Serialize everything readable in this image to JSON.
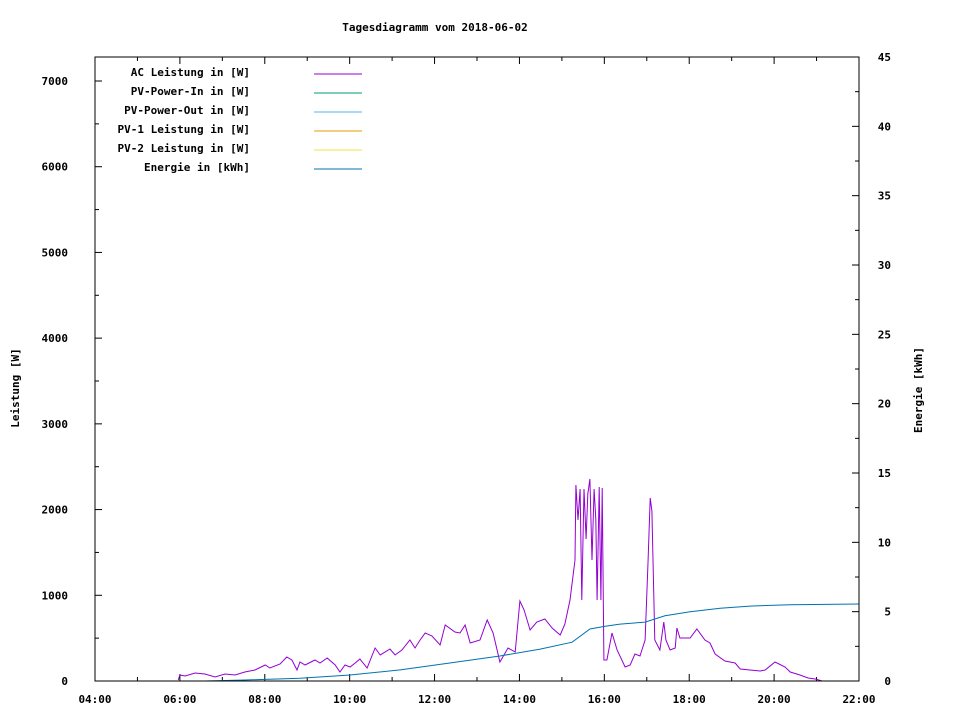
{
  "chart_data": {
    "type": "line",
    "title": "Tagesdiagramm vom 2018-06-02",
    "ylabel": "Leistung [W]",
    "y2label": "Energie [kWh]",
    "xlabel": "",
    "xlim": [
      4,
      22
    ],
    "ylim": [
      0,
      7280
    ],
    "y2lim": [
      0,
      45
    ],
    "x_ticks": [
      "04:00",
      "06:00",
      "08:00",
      "10:00",
      "12:00",
      "14:00",
      "16:00",
      "18:00",
      "20:00",
      "22:00"
    ],
    "y_ticks": [
      0,
      1000,
      2000,
      3000,
      4000,
      5000,
      6000,
      7000
    ],
    "y2_ticks": [
      0,
      5,
      10,
      15,
      20,
      25,
      30,
      35,
      40,
      45
    ],
    "grid": false,
    "legend_position": "top-left",
    "series": [
      {
        "name": "AC Leistung in [W]",
        "color": "#9400d3",
        "axis": "y",
        "x": [
          5.96,
          6.0,
          6.12,
          6.36,
          6.59,
          6.83,
          7.06,
          7.3,
          7.53,
          7.77,
          8.01,
          8.12,
          8.36,
          8.52,
          8.64,
          8.76,
          8.83,
          8.95,
          9.18,
          9.3,
          9.47,
          9.66,
          9.77,
          9.89,
          10.01,
          10.13,
          10.24,
          10.41,
          10.6,
          10.72,
          10.95,
          11.07,
          11.23,
          11.42,
          11.54,
          11.66,
          11.78,
          11.94,
          12.13,
          12.25,
          12.48,
          12.6,
          12.72,
          12.84,
          13.07,
          13.24,
          13.38,
          13.54,
          13.73,
          13.9,
          14.01,
          14.11,
          14.25,
          14.41,
          14.6,
          14.77,
          14.96,
          15.07,
          15.19,
          15.31,
          15.33,
          15.38,
          15.43,
          15.47,
          15.52,
          15.57,
          15.61,
          15.66,
          15.71,
          15.76,
          15.8,
          15.83,
          15.88,
          15.92,
          15.95,
          15.99,
          16.06,
          16.18,
          16.3,
          16.49,
          16.61,
          16.72,
          16.84,
          16.96,
          17.03,
          17.08,
          17.12,
          17.19,
          17.31,
          17.4,
          17.45,
          17.55,
          17.67,
          17.71,
          17.78,
          18.02,
          18.18,
          18.37,
          18.49,
          18.61,
          18.84,
          19.08,
          19.2,
          19.43,
          19.67,
          19.79,
          20.02,
          20.26,
          20.38,
          20.61,
          20.8,
          20.97,
          21.13
        ],
        "y": [
          12,
          70,
          58,
          93,
          82,
          47,
          82,
          70,
          105,
          128,
          187,
          152,
          198,
          280,
          245,
          128,
          222,
          187,
          245,
          210,
          268,
          187,
          105,
          187,
          163,
          210,
          257,
          152,
          385,
          303,
          373,
          303,
          362,
          478,
          385,
          478,
          560,
          525,
          420,
          653,
          572,
          560,
          653,
          443,
          478,
          712,
          560,
          222,
          385,
          338,
          933,
          828,
          595,
          688,
          723,
          618,
          537,
          665,
          945,
          1412,
          2287,
          1878,
          2240,
          945,
          2240,
          1657,
          2182,
          2357,
          1412,
          2240,
          1890,
          945,
          2263,
          945,
          2252,
          245,
          245,
          560,
          362,
          163,
          187,
          315,
          292,
          478,
          1412,
          2135,
          1983,
          478,
          362,
          688,
          478,
          362,
          385,
          618,
          502,
          502,
          607,
          478,
          443,
          315,
          233,
          210,
          140,
          128,
          117,
          128,
          222,
          163,
          105,
          70,
          35,
          23,
          0
        ]
      },
      {
        "name": "PV-Power-In in [W]",
        "color": "#009e73",
        "axis": "y",
        "x": [],
        "y": []
      },
      {
        "name": "PV-Power-Out in [W]",
        "color": "#56b4e9",
        "axis": "y",
        "x": [],
        "y": []
      },
      {
        "name": "PV-1 Leistung in [W]",
        "color": "#e69f00",
        "axis": "y",
        "x": [],
        "y": []
      },
      {
        "name": "PV-2 Leistung in [W]",
        "color": "#f0e442",
        "axis": "y",
        "x": [],
        "y": []
      },
      {
        "name": "Energie in [kWh]",
        "color": "#0072b2",
        "axis": "y2",
        "x": [
          6.59,
          7.53,
          8.83,
          10.01,
          11.19,
          12.36,
          13.54,
          14.49,
          15.24,
          15.66,
          16.02,
          16.37,
          16.96,
          17.43,
          18.02,
          18.73,
          19.43,
          20.38,
          22.0
        ],
        "y": [
          0,
          0.07,
          0.2,
          0.43,
          0.8,
          1.3,
          1.8,
          2.3,
          2.8,
          3.75,
          3.95,
          4.1,
          4.25,
          4.7,
          5.0,
          5.25,
          5.4,
          5.5,
          5.55
        ]
      }
    ]
  }
}
